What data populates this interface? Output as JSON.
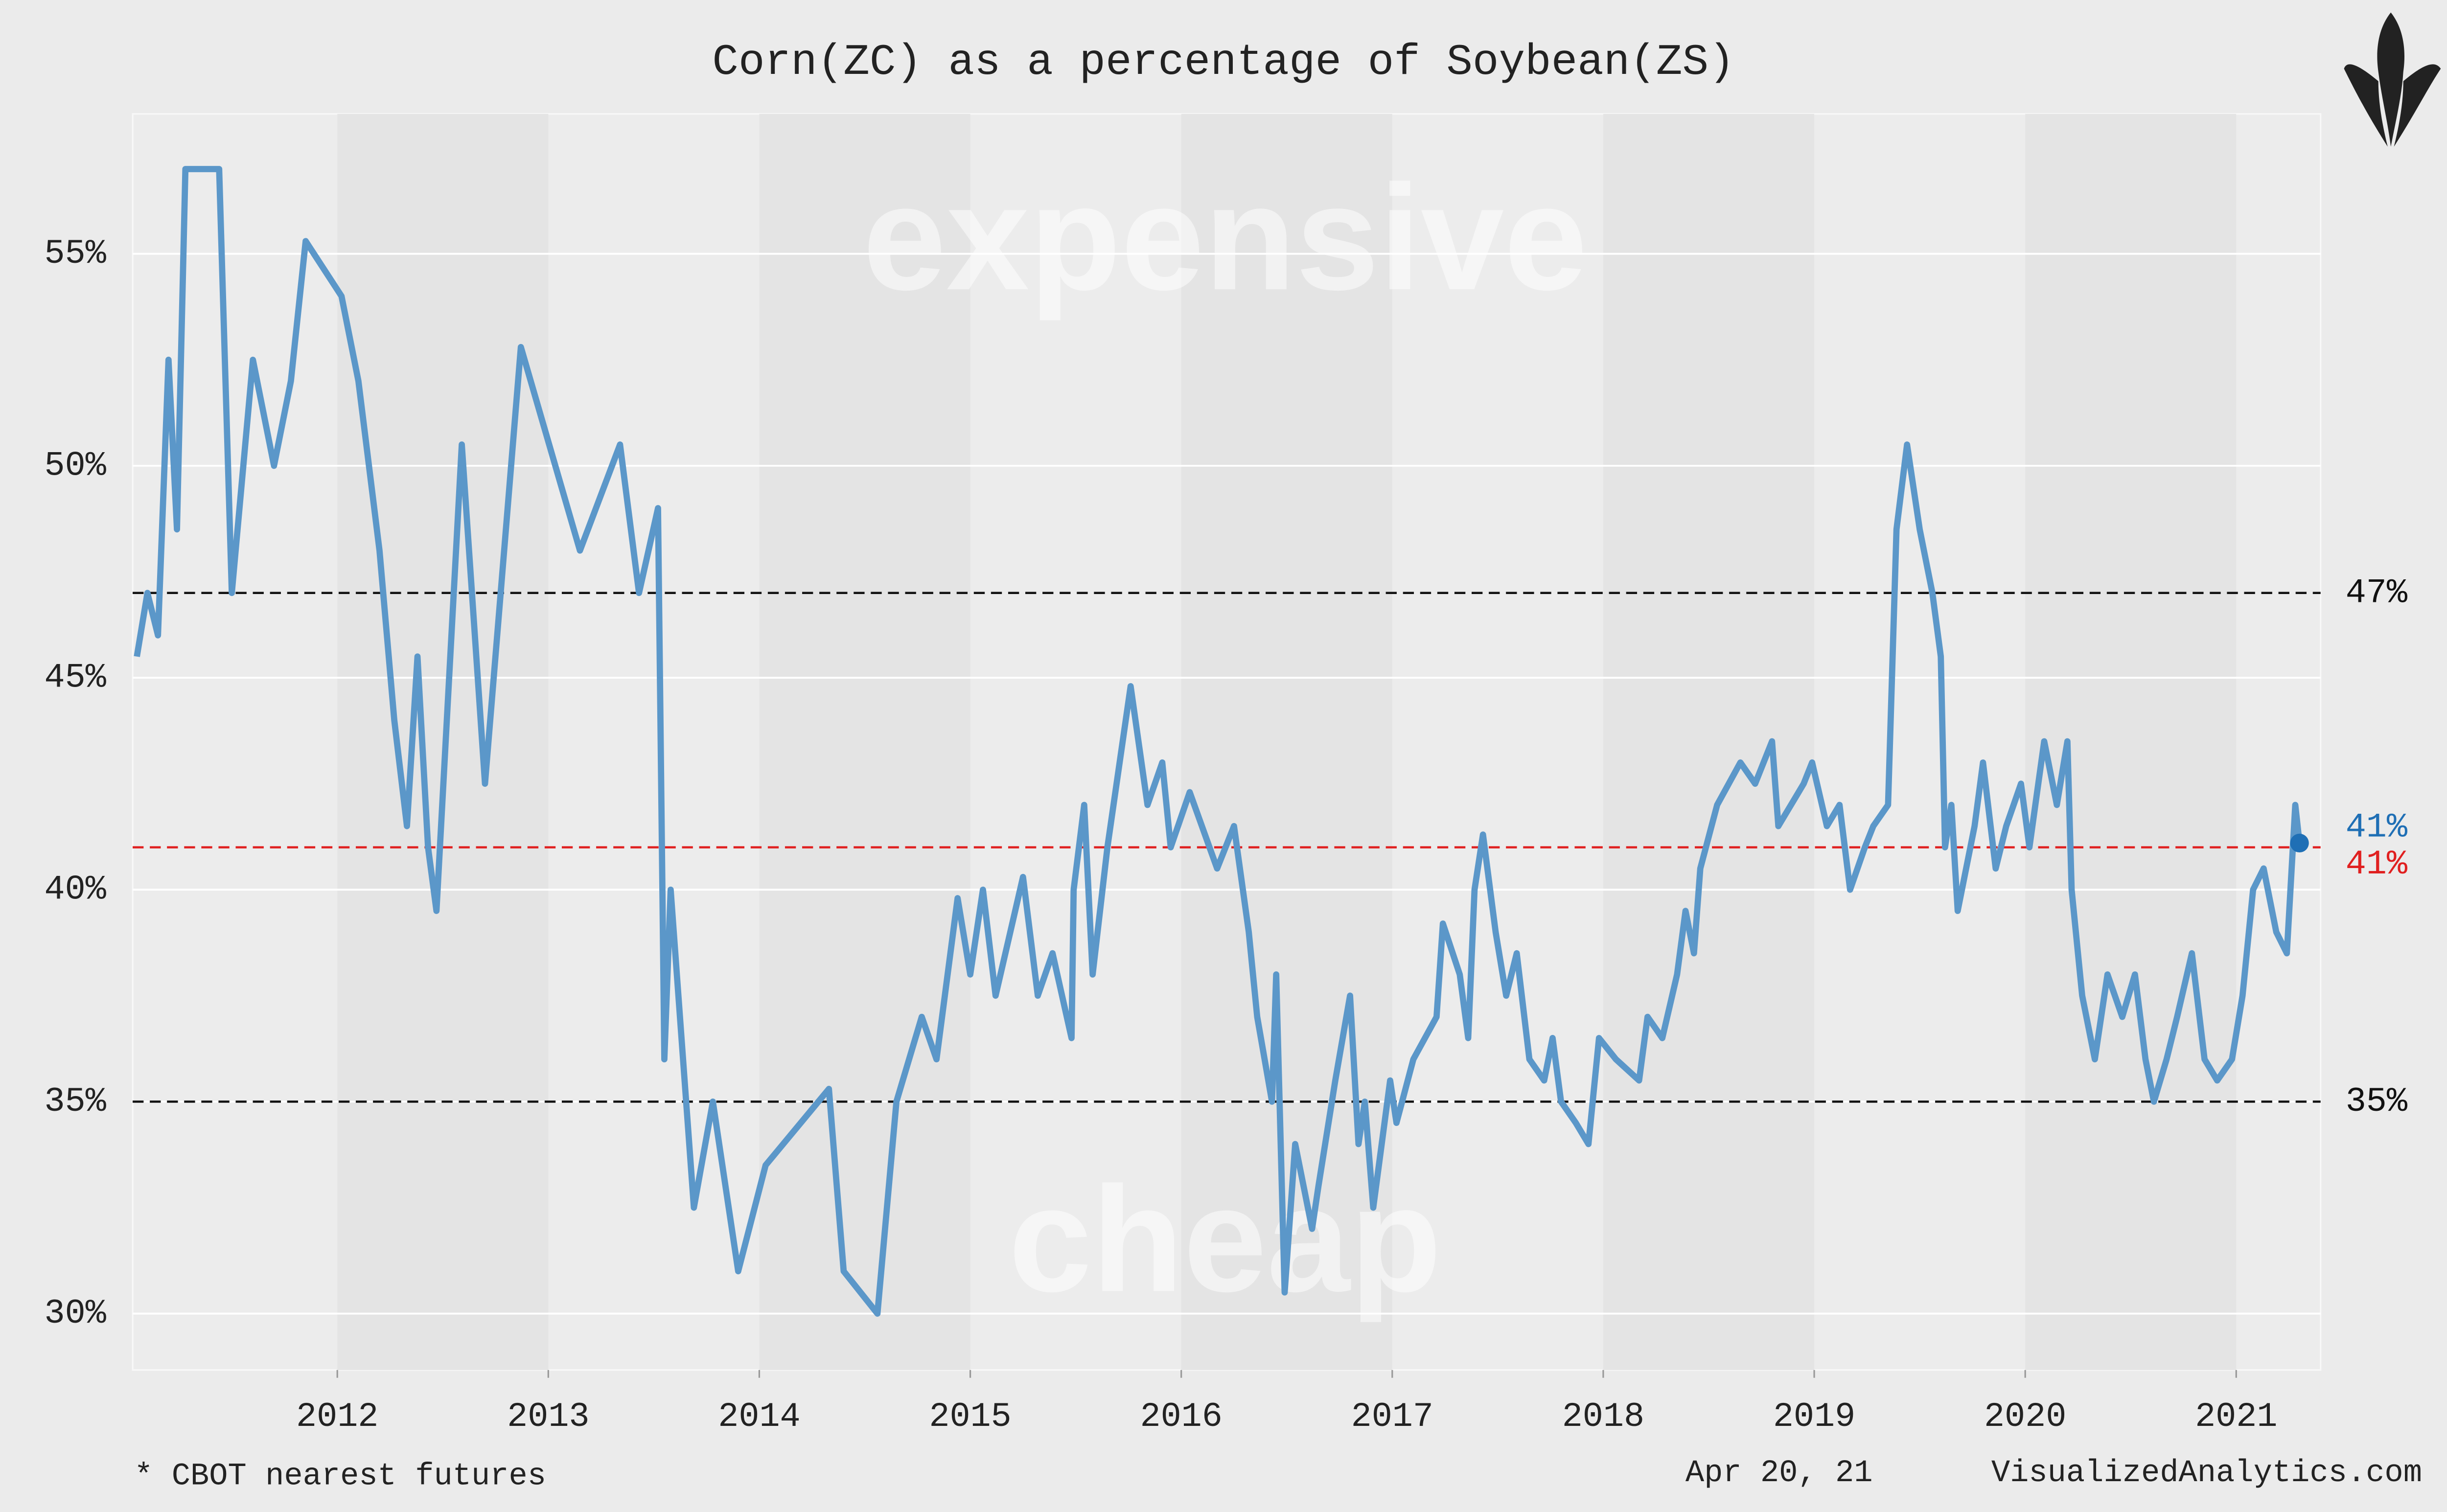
{
  "chart_data": {
    "type": "line",
    "title": "Corn(ZC) as a percentage of Soybean(ZS)",
    "annotations": [
      "expensive",
      "cheap"
    ],
    "footnote": "* CBOT nearest futures",
    "date": "Apr 20, 21",
    "source": "VisualizedAnalytics.com",
    "color": "#5b97c9",
    "x": [
      2011.05,
      2011.1,
      2011.15,
      2011.2,
      2011.24,
      2011.28,
      2011.44,
      2011.5,
      2011.6,
      2011.7,
      2011.78,
      2011.85,
      2012.02,
      2012.1,
      2012.2,
      2012.27,
      2012.33,
      2012.38,
      2012.43,
      2012.47,
      2012.59,
      2012.7,
      2012.87,
      2013.15,
      2013.34,
      2013.43,
      2013.52,
      2013.55,
      2013.58,
      2013.69,
      2013.78,
      2013.9,
      2014.03,
      2014.33,
      2014.4,
      2014.56,
      2014.65,
      2014.77,
      2014.84,
      2014.94,
      2015.0,
      2015.06,
      2015.12,
      2015.25,
      2015.32,
      2015.39,
      2015.48,
      2015.49,
      2015.54,
      2015.58,
      2015.65,
      2015.76,
      2015.84,
      2015.91,
      2015.95,
      2016.04,
      2016.17,
      2016.25,
      2016.32,
      2016.36,
      2016.43,
      2016.45,
      2016.49,
      2016.54,
      2016.62,
      2016.65,
      2016.73,
      2016.8,
      2016.84,
      2016.87,
      2016.91,
      2016.99,
      2017.02,
      2017.1,
      2017.21,
      2017.24,
      2017.32,
      2017.36,
      2017.39,
      2017.43,
      2017.49,
      2017.54,
      2017.59,
      2017.65,
      2017.72,
      2017.76,
      2017.8,
      2017.87,
      2017.93,
      2017.98,
      2018.06,
      2018.17,
      2018.21,
      2018.28,
      2018.35,
      2018.39,
      2018.43,
      2018.46,
      2018.54,
      2018.65,
      2018.72,
      2018.8,
      2018.83,
      2018.95,
      2018.99,
      2019.06,
      2019.12,
      2019.17,
      2019.24,
      2019.28,
      2019.35,
      2019.39,
      2019.44,
      2019.5,
      2019.56,
      2019.6,
      2019.62,
      2019.65,
      2019.68,
      2019.76,
      2019.8,
      2019.86,
      2019.91,
      2019.98,
      2020.02,
      2020.09,
      2020.15,
      2020.2,
      2020.22,
      2020.27,
      2020.33,
      2020.39,
      2020.46,
      2020.52,
      2020.57,
      2020.61,
      2020.67,
      2020.72,
      2020.79,
      2020.85,
      2020.91,
      2020.98,
      2021.03,
      2021.08,
      2021.13,
      2021.19,
      2021.24,
      2021.28,
      2021.3
    ],
    "values": [
      45.5,
      47,
      46,
      52.5,
      48.5,
      57,
      57,
      47,
      52.5,
      50,
      52,
      55.3,
      54,
      52,
      48,
      44,
      41.5,
      45.5,
      41,
      39.5,
      50.5,
      42.5,
      52.8,
      48,
      50.5,
      47,
      49,
      36,
      40,
      32.5,
      35,
      31,
      33.5,
      35.3,
      31,
      30,
      35,
      37,
      36,
      39.8,
      38,
      40,
      37.5,
      40.3,
      37.5,
      38.5,
      36.5,
      40,
      42,
      38,
      41,
      44.8,
      42,
      43,
      41,
      42.3,
      40.5,
      41.5,
      39,
      37,
      35,
      38,
      30.5,
      34,
      32,
      33,
      35.5,
      37.5,
      34,
      35,
      32.5,
      35.5,
      34.5,
      36,
      37,
      39.2,
      38,
      36.5,
      40,
      41.3,
      39,
      37.5,
      38.5,
      36,
      35.5,
      36.5,
      35,
      34.5,
      34,
      36.5,
      36,
      35.5,
      37,
      36.5,
      38,
      39.5,
      38.5,
      40.5,
      42,
      43,
      42.5,
      43.5,
      41.5,
      42.5,
      43,
      41.5,
      42,
      40,
      41,
      41.5,
      42,
      48.5,
      50.5,
      48.5,
      47,
      45.5,
      41,
      42,
      39.5,
      41.5,
      43,
      40.5,
      41.5,
      42.5,
      41,
      43.5,
      42,
      43.5,
      40,
      37.5,
      36,
      38,
      37,
      38,
      36,
      35,
      36,
      37,
      38.5,
      36,
      35.5,
      36,
      37.5,
      40,
      40.5,
      39,
      38.5,
      42,
      41.1
    ],
    "last_value_label": "41%",
    "last_value_color": "#1f6fb5",
    "hlines": [
      {
        "value": 47,
        "label": "47%",
        "color": "#111111"
      },
      {
        "value": 41,
        "label": "41%",
        "color": "#e02020"
      },
      {
        "value": 35,
        "label": "35%",
        "color": "#111111"
      }
    ],
    "xlim": [
      2011.03,
      2021.4
    ],
    "ylim": [
      28.67,
      58.3
    ],
    "xticks": [
      2012,
      2013,
      2014,
      2015,
      2016,
      2017,
      2018,
      2019,
      2020,
      2021
    ],
    "yticks": [
      {
        "value": 30,
        "label": "30%"
      },
      {
        "value": 35,
        "label": "35%"
      },
      {
        "value": 40,
        "label": "40%"
      },
      {
        "value": 45,
        "label": "45%"
      },
      {
        "value": 50,
        "label": "50%"
      },
      {
        "value": 55,
        "label": "55%"
      }
    ],
    "grid": true
  }
}
